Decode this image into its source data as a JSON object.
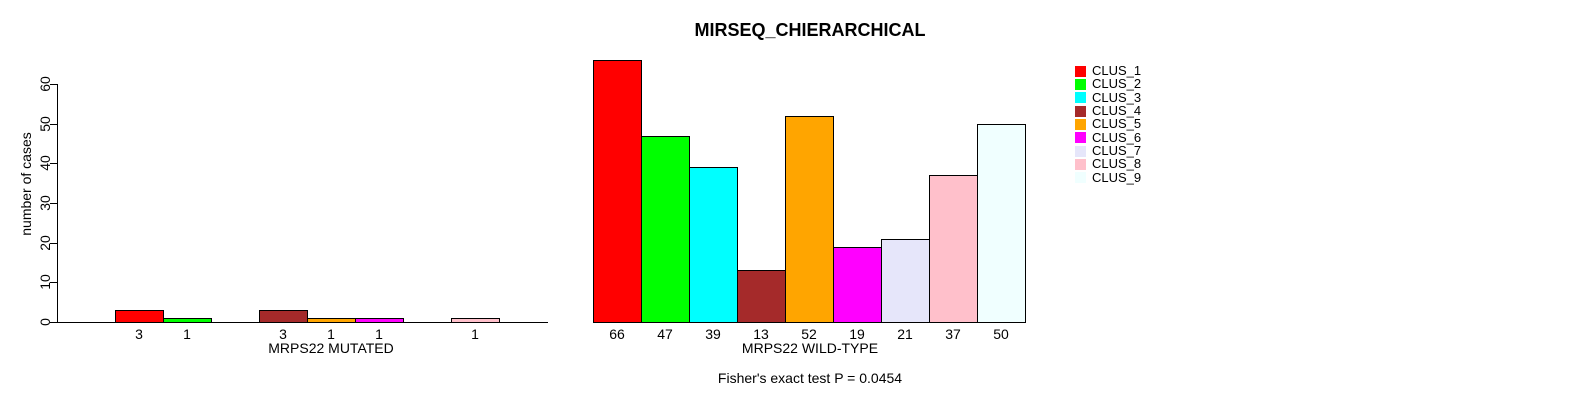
{
  "title": "MIRSEQ_CHIERARCHICAL",
  "chart_data": {
    "type": "bar",
    "title": "MIRSEQ_CHIERARCHICAL",
    "ylabel": "number of cases",
    "ylim": [
      0,
      60
    ],
    "yticks": [
      0,
      10,
      20,
      30,
      40,
      50,
      60
    ],
    "grid": false,
    "legend_position": "right",
    "categories": [
      "CLUS_1",
      "CLUS_2",
      "CLUS_3",
      "CLUS_4",
      "CLUS_5",
      "CLUS_6",
      "CLUS_7",
      "CLUS_8",
      "CLUS_9"
    ],
    "colors": [
      "#FF0000",
      "#00FF00",
      "#00FFFF",
      "#A52A2A",
      "#FFA500",
      "#FF00FF",
      "#E6E6FA",
      "#FFC0CB",
      "#F0FFFF"
    ],
    "groups": [
      {
        "label": "MRPS22 MUTATED",
        "values": [
          3,
          1,
          0,
          3,
          1,
          1,
          0,
          1,
          0
        ]
      },
      {
        "label": "MRPS22 WILD-TYPE",
        "values": [
          66,
          47,
          39,
          13,
          52,
          19,
          21,
          37,
          50
        ]
      }
    ],
    "annotation": "Fisher's exact test P = 0.0454",
    "axis_color": "#000000",
    "background": "#ffffff"
  }
}
